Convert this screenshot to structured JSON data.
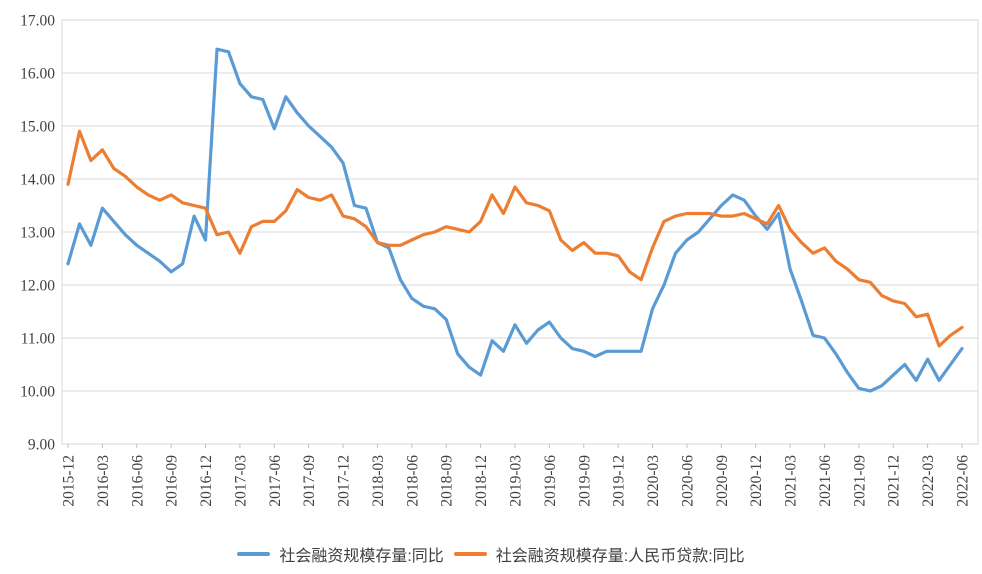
{
  "chart_data": {
    "type": "line",
    "title": "",
    "xlabel": "",
    "ylabel": "",
    "ylim": [
      9,
      17
    ],
    "y_ticks": [
      "9.00",
      "10.00",
      "11.00",
      "12.00",
      "13.00",
      "14.00",
      "15.00",
      "16.00",
      "17.00"
    ],
    "grid": true,
    "legend_position": "bottom",
    "gridline_color": "#d9d9d9",
    "axis_line_color": "#bfbfbf",
    "tick_text_color": "#404040",
    "x": [
      "2015-12",
      "2016-01",
      "2016-02",
      "2016-03",
      "2016-04",
      "2016-05",
      "2016-06",
      "2016-07",
      "2016-08",
      "2016-09",
      "2016-10",
      "2016-11",
      "2016-12",
      "2017-01",
      "2017-02",
      "2017-03",
      "2017-04",
      "2017-05",
      "2017-06",
      "2017-07",
      "2017-08",
      "2017-09",
      "2017-10",
      "2017-11",
      "2017-12",
      "2018-01",
      "2018-02",
      "2018-03",
      "2018-04",
      "2018-05",
      "2018-06",
      "2018-07",
      "2018-08",
      "2018-09",
      "2018-10",
      "2018-11",
      "2018-12",
      "2019-01",
      "2019-02",
      "2019-03",
      "2019-04",
      "2019-05",
      "2019-06",
      "2019-07",
      "2019-08",
      "2019-09",
      "2019-10",
      "2019-11",
      "2019-12",
      "2020-01",
      "2020-02",
      "2020-03",
      "2020-04",
      "2020-05",
      "2020-06",
      "2020-07",
      "2020-08",
      "2020-09",
      "2020-10",
      "2020-11",
      "2020-12",
      "2021-01",
      "2021-02",
      "2021-03",
      "2021-04",
      "2021-05",
      "2021-06",
      "2021-07",
      "2021-08",
      "2021-09",
      "2021-10",
      "2021-11",
      "2021-12",
      "2022-01",
      "2022-02",
      "2022-03",
      "2022-04",
      "2022-05",
      "2022-06"
    ],
    "x_tick_labels": [
      "2015-12",
      "2016-03",
      "2016-06",
      "2016-09",
      "2016-12",
      "2017-03",
      "2017-06",
      "2017-09",
      "2017-12",
      "2018-03",
      "2018-06",
      "2018-09",
      "2018-12",
      "2019-03",
      "2019-06",
      "2019-09",
      "2019-12",
      "2020-03",
      "2020-06",
      "2020-09",
      "2020-12",
      "2021-03",
      "2021-06",
      "2021-09",
      "2021-12",
      "2022-03",
      "2022-06"
    ],
    "x_tick_every": 3,
    "series": [
      {
        "name": "社会融资规模存量:同比",
        "color": "#5b9bd5",
        "values": [
          12.4,
          13.15,
          12.75,
          13.45,
          13.2,
          12.95,
          12.75,
          12.6,
          12.45,
          12.25,
          12.4,
          13.3,
          12.85,
          16.45,
          16.4,
          15.8,
          15.55,
          15.5,
          14.95,
          15.55,
          15.25,
          15.0,
          14.8,
          14.6,
          14.3,
          13.5,
          13.45,
          12.8,
          12.7,
          12.1,
          11.75,
          11.6,
          11.55,
          11.35,
          10.7,
          10.45,
          10.3,
          10.95,
          10.75,
          11.25,
          10.9,
          11.15,
          11.3,
          11.0,
          10.8,
          10.75,
          10.65,
          10.75,
          10.75,
          10.75,
          10.75,
          11.55,
          12.0,
          12.6,
          12.85,
          13.0,
          13.25,
          13.5,
          13.7,
          13.6,
          13.3,
          13.05,
          13.35,
          12.3,
          11.7,
          11.05,
          11.0,
          10.7,
          10.35,
          10.05,
          10.0,
          10.1,
          10.3,
          10.5,
          10.2,
          10.6,
          10.2,
          10.5,
          10.8
        ]
      },
      {
        "name": "社会融资规模存量:人民币贷款:同比",
        "color": "#ed7d31",
        "values": [
          13.9,
          14.9,
          14.35,
          14.55,
          14.2,
          14.05,
          13.85,
          13.7,
          13.6,
          13.7,
          13.55,
          13.5,
          13.45,
          12.95,
          13.0,
          12.6,
          13.1,
          13.2,
          13.2,
          13.4,
          13.8,
          13.65,
          13.6,
          13.7,
          13.3,
          13.25,
          13.1,
          12.8,
          12.75,
          12.75,
          12.85,
          12.95,
          13.0,
          13.1,
          13.05,
          13.0,
          13.2,
          13.7,
          13.35,
          13.85,
          13.55,
          13.5,
          13.4,
          12.85,
          12.65,
          12.8,
          12.6,
          12.6,
          12.55,
          12.25,
          12.1,
          12.7,
          13.2,
          13.3,
          13.35,
          13.35,
          13.35,
          13.3,
          13.3,
          13.35,
          13.25,
          13.15,
          13.5,
          13.05,
          12.8,
          12.6,
          12.7,
          12.45,
          12.3,
          12.1,
          12.05,
          11.8,
          11.7,
          11.65,
          11.4,
          11.45,
          10.85,
          11.05,
          11.2
        ]
      }
    ]
  }
}
